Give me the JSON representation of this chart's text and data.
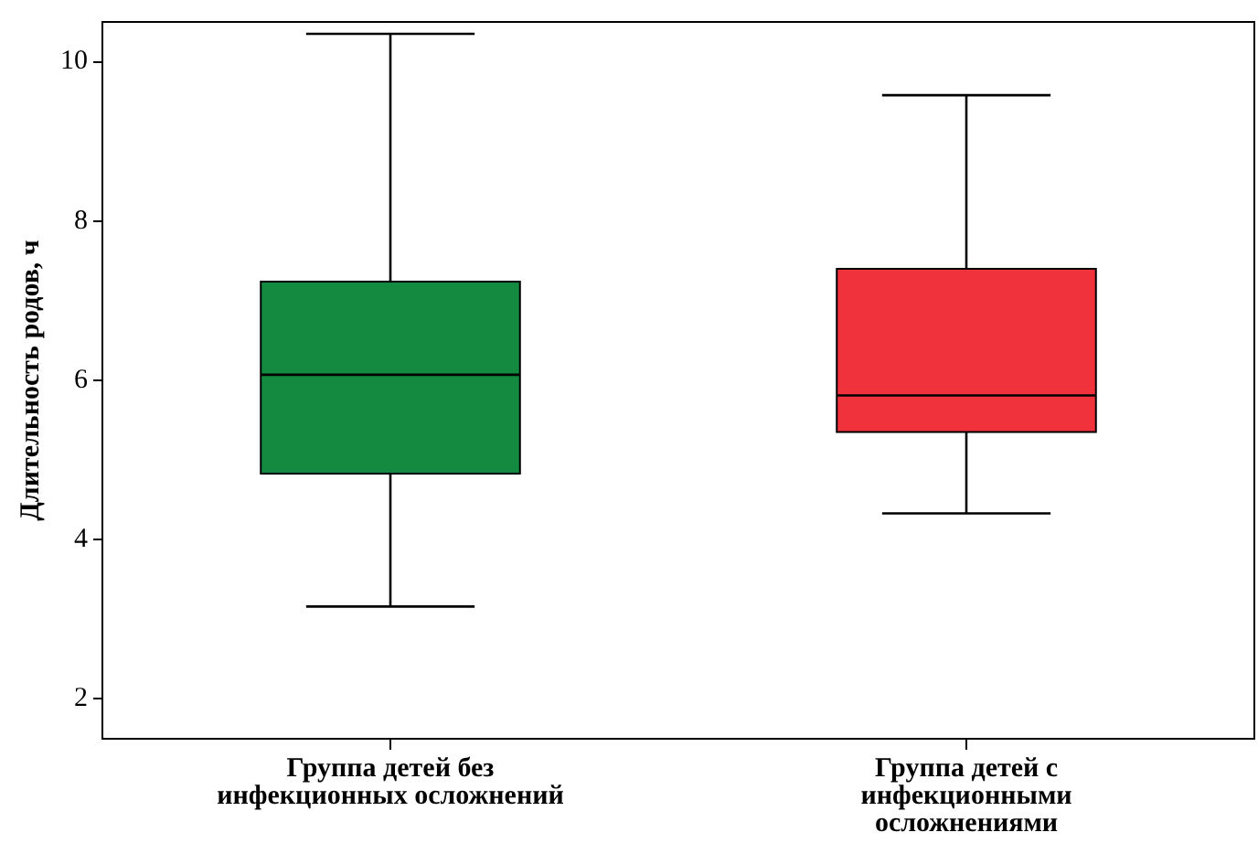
{
  "chart_data": {
    "type": "box",
    "ylabel": "Длительность родов, ч",
    "categories": [
      "Группа детей без инфекционных осложнений",
      "Группа детей с инфекционными осложнениями"
    ],
    "boxes": [
      {
        "low": 3.16,
        "q1": 4.83,
        "median": 6.07,
        "q3": 7.24,
        "high": 10.35
      },
      {
        "low": 4.33,
        "q1": 5.35,
        "median": 5.81,
        "q3": 7.4,
        "high": 9.58
      }
    ],
    "colors": [
      "#138a3f",
      "#f0323c"
    ],
    "ylim": [
      1.5,
      10.5
    ],
    "yticks": [
      2,
      4,
      6,
      8,
      10
    ],
    "grid": false,
    "legend": false
  }
}
